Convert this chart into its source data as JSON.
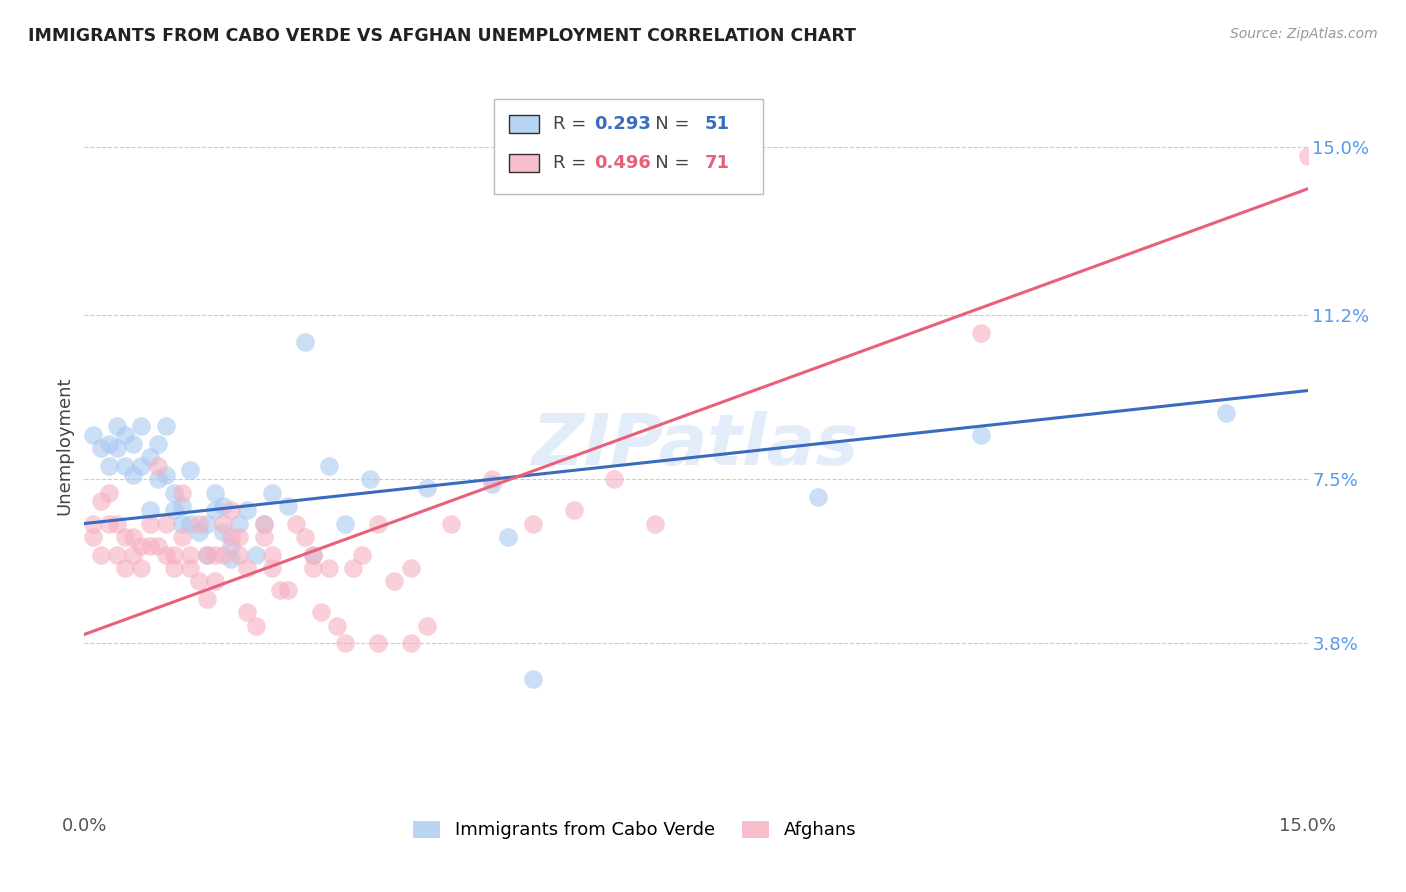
{
  "title": "IMMIGRANTS FROM CABO VERDE VS AFGHAN UNEMPLOYMENT CORRELATION CHART",
  "source": "Source: ZipAtlas.com",
  "ylabel": "Unemployment",
  "x_min": 0.0,
  "x_max": 0.15,
  "y_min": 0.0,
  "y_max": 0.165,
  "y_tick_labels_right": [
    [
      0.038,
      "3.8%"
    ],
    [
      0.075,
      "7.5%"
    ],
    [
      0.112,
      "11.2%"
    ],
    [
      0.15,
      "15.0%"
    ]
  ],
  "legend_labels_bottom": [
    "Immigrants from Cabo Verde",
    "Afghans"
  ],
  "blue_color": "#a8c8f0",
  "pink_color": "#f5b0c0",
  "blue_line_color": "#3a6bbf",
  "pink_line_color": "#e8607a",
  "watermark": "ZIPatlas",
  "blue_r": "0.293",
  "blue_n": "51",
  "pink_r": "0.496",
  "pink_n": "71",
  "blue_scatter": [
    [
      0.001,
      0.085
    ],
    [
      0.002,
      0.082
    ],
    [
      0.003,
      0.083
    ],
    [
      0.003,
      0.078
    ],
    [
      0.004,
      0.087
    ],
    [
      0.004,
      0.082
    ],
    [
      0.005,
      0.085
    ],
    [
      0.005,
      0.078
    ],
    [
      0.006,
      0.083
    ],
    [
      0.006,
      0.076
    ],
    [
      0.007,
      0.087
    ],
    [
      0.007,
      0.078
    ],
    [
      0.008,
      0.08
    ],
    [
      0.008,
      0.068
    ],
    [
      0.009,
      0.083
    ],
    [
      0.009,
      0.075
    ],
    [
      0.01,
      0.076
    ],
    [
      0.01,
      0.087
    ],
    [
      0.011,
      0.072
    ],
    [
      0.011,
      0.068
    ],
    [
      0.012,
      0.065
    ],
    [
      0.012,
      0.069
    ],
    [
      0.013,
      0.077
    ],
    [
      0.013,
      0.065
    ],
    [
      0.014,
      0.063
    ],
    [
      0.015,
      0.065
    ],
    [
      0.015,
      0.058
    ],
    [
      0.016,
      0.072
    ],
    [
      0.016,
      0.068
    ],
    [
      0.017,
      0.063
    ],
    [
      0.017,
      0.069
    ],
    [
      0.018,
      0.057
    ],
    [
      0.018,
      0.06
    ],
    [
      0.019,
      0.065
    ],
    [
      0.02,
      0.068
    ],
    [
      0.021,
      0.058
    ],
    [
      0.022,
      0.065
    ],
    [
      0.023,
      0.072
    ],
    [
      0.025,
      0.069
    ],
    [
      0.027,
      0.106
    ],
    [
      0.028,
      0.058
    ],
    [
      0.03,
      0.078
    ],
    [
      0.032,
      0.065
    ],
    [
      0.035,
      0.075
    ],
    [
      0.042,
      0.073
    ],
    [
      0.05,
      0.074
    ],
    [
      0.052,
      0.062
    ],
    [
      0.055,
      0.03
    ],
    [
      0.09,
      0.071
    ],
    [
      0.11,
      0.085
    ],
    [
      0.14,
      0.09
    ]
  ],
  "pink_scatter": [
    [
      0.001,
      0.065
    ],
    [
      0.001,
      0.062
    ],
    [
      0.002,
      0.07
    ],
    [
      0.002,
      0.058
    ],
    [
      0.003,
      0.072
    ],
    [
      0.003,
      0.065
    ],
    [
      0.004,
      0.065
    ],
    [
      0.004,
      0.058
    ],
    [
      0.005,
      0.062
    ],
    [
      0.005,
      0.055
    ],
    [
      0.006,
      0.058
    ],
    [
      0.006,
      0.062
    ],
    [
      0.007,
      0.055
    ],
    [
      0.007,
      0.06
    ],
    [
      0.008,
      0.065
    ],
    [
      0.008,
      0.06
    ],
    [
      0.009,
      0.078
    ],
    [
      0.009,
      0.06
    ],
    [
      0.01,
      0.065
    ],
    [
      0.01,
      0.058
    ],
    [
      0.011,
      0.055
    ],
    [
      0.011,
      0.058
    ],
    [
      0.012,
      0.062
    ],
    [
      0.012,
      0.072
    ],
    [
      0.013,
      0.055
    ],
    [
      0.013,
      0.058
    ],
    [
      0.014,
      0.052
    ],
    [
      0.014,
      0.065
    ],
    [
      0.015,
      0.058
    ],
    [
      0.015,
      0.048
    ],
    [
      0.016,
      0.058
    ],
    [
      0.016,
      0.052
    ],
    [
      0.017,
      0.058
    ],
    [
      0.017,
      0.065
    ],
    [
      0.018,
      0.062
    ],
    [
      0.018,
      0.068
    ],
    [
      0.019,
      0.058
    ],
    [
      0.019,
      0.062
    ],
    [
      0.02,
      0.055
    ],
    [
      0.02,
      0.045
    ],
    [
      0.021,
      0.042
    ],
    [
      0.022,
      0.062
    ],
    [
      0.022,
      0.065
    ],
    [
      0.023,
      0.058
    ],
    [
      0.023,
      0.055
    ],
    [
      0.024,
      0.05
    ],
    [
      0.025,
      0.05
    ],
    [
      0.026,
      0.065
    ],
    [
      0.027,
      0.062
    ],
    [
      0.028,
      0.055
    ],
    [
      0.028,
      0.058
    ],
    [
      0.029,
      0.045
    ],
    [
      0.03,
      0.055
    ],
    [
      0.031,
      0.042
    ],
    [
      0.032,
      0.038
    ],
    [
      0.033,
      0.055
    ],
    [
      0.034,
      0.058
    ],
    [
      0.036,
      0.065
    ],
    [
      0.036,
      0.038
    ],
    [
      0.038,
      0.052
    ],
    [
      0.04,
      0.038
    ],
    [
      0.04,
      0.055
    ],
    [
      0.042,
      0.042
    ],
    [
      0.045,
      0.065
    ],
    [
      0.05,
      0.075
    ],
    [
      0.055,
      0.065
    ],
    [
      0.06,
      0.068
    ],
    [
      0.065,
      0.075
    ],
    [
      0.07,
      0.065
    ],
    [
      0.11,
      0.108
    ],
    [
      0.15,
      0.148
    ]
  ],
  "blue_regression_intercept": 0.065,
  "blue_regression_slope": 0.2,
  "pink_regression_intercept": 0.04,
  "pink_regression_slope": 0.67
}
